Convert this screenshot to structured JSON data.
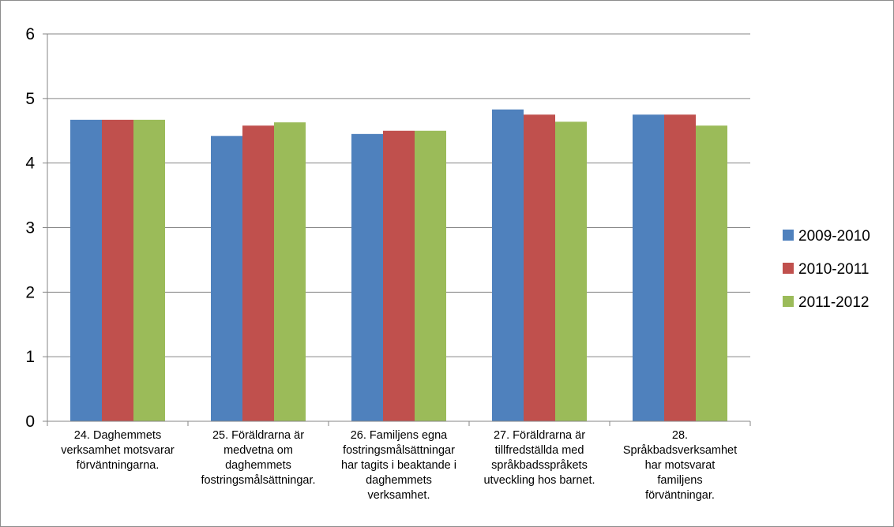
{
  "chart_data": {
    "type": "bar",
    "title": "",
    "xlabel": "",
    "ylabel": "",
    "ylim": [
      0,
      6
    ],
    "yticks": [
      0,
      1,
      2,
      3,
      4,
      5,
      6
    ],
    "grid": true,
    "legend_position": "right",
    "categories": [
      [
        "24. Daghemmets",
        "verksamhet motsvarar",
        "förväntningarna."
      ],
      [
        "25. Föräldrarna är",
        "medvetna om",
        "daghemmets",
        "fostringsmålsättningar."
      ],
      [
        "26. Familjens egna",
        "fostringsmålsättningar",
        "har tagits i beaktande i",
        "daghemmets",
        "verksamhet."
      ],
      [
        "27. Föräldrarna är",
        "tillfredställda med",
        "språkbadsspråkets",
        "utveckling hos barnet."
      ],
      [
        "28.",
        "Språkbadsverksamhet",
        "har motsvarat",
        "familjens",
        "förväntningar."
      ]
    ],
    "series": [
      {
        "name": "2009-2010",
        "color": "#4f81bd",
        "values": [
          4.67,
          4.42,
          4.45,
          4.83,
          4.75
        ]
      },
      {
        "name": "2010-2011",
        "color": "#c0504d",
        "values": [
          4.67,
          4.58,
          4.5,
          4.75,
          4.75
        ]
      },
      {
        "name": "2011-2012",
        "color": "#9bbb59",
        "values": [
          4.67,
          4.63,
          4.5,
          4.64,
          4.58
        ]
      }
    ]
  }
}
